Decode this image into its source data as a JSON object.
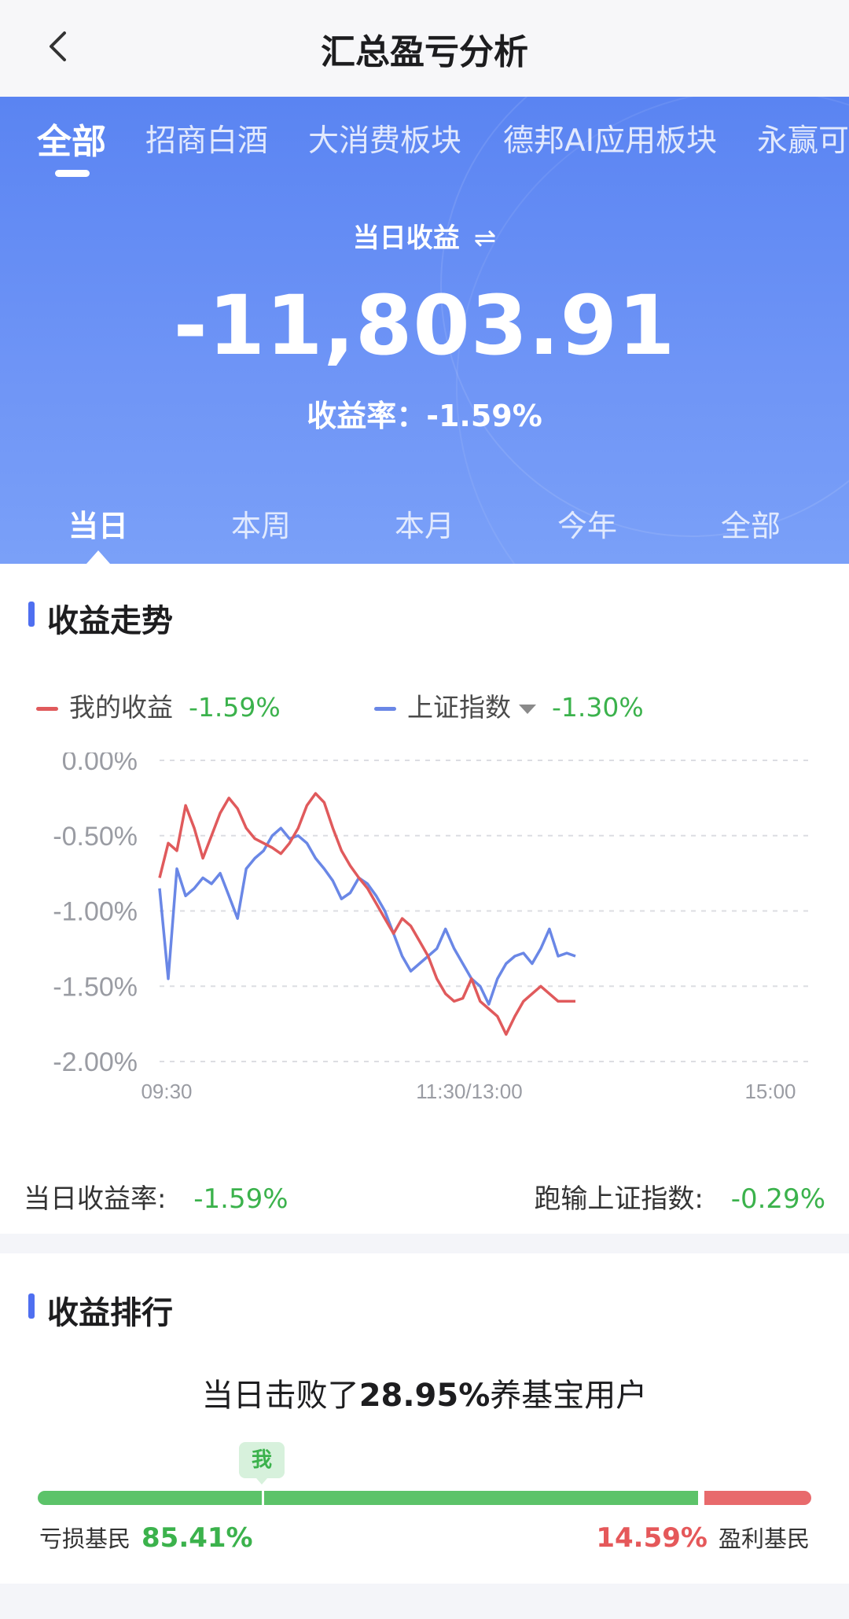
{
  "nav": {
    "title": "汇总盈亏分析"
  },
  "fund_tabs": [
    "全部",
    "招商白酒",
    "大消费板块",
    "德邦AI应用板块",
    "永赢可"
  ],
  "summary": {
    "label": "当日收益",
    "amount": "-11,803.91",
    "rate_label": "收益率：",
    "rate_value": "-1.59%"
  },
  "period_tabs": [
    "当日",
    "本周",
    "本月",
    "今年",
    "全部"
  ],
  "trend": {
    "title": "收益走势",
    "legend_mine_label": "我的收益",
    "legend_mine_value": "-1.59%",
    "legend_index_label": "上证指数",
    "legend_index_value": "-1.30%",
    "daily_rate_label": "当日收益率:",
    "daily_rate_value": "-1.59%",
    "vs_index_label": "跑输上证指数:",
    "vs_index_value": "-0.29%"
  },
  "ranking": {
    "title": "收益排行",
    "text_prefix": "当日击败了",
    "text_value": "28.95%",
    "text_suffix": "养基宝用户",
    "me_badge": "我",
    "loss_label": "亏损基民",
    "loss_value": "85.41%",
    "gain_value": "14.59%",
    "gain_label": "盈利基民",
    "me_position": 0.2895,
    "loss_fraction": 0.8541
  },
  "colors": {
    "hero_blue": "#5a84f2",
    "mine_line": "#e05a5c",
    "index_line": "#6a87e6",
    "positive_green": "#3bb24c",
    "loss_red": "#e5585a"
  },
  "chart_data": {
    "type": "line",
    "ylabel": "",
    "xlabel": "",
    "y_ticks": [
      "0.00%",
      "-0.50%",
      "-1.00%",
      "-1.50%",
      "-2.00%"
    ],
    "x_ticks": [
      "09:30",
      "11:30/13:00",
      "15:00"
    ],
    "ylim": [
      -2.0,
      0.0
    ],
    "grid": true,
    "series": [
      {
        "name": "我的收益",
        "values": [
          -0.78,
          -0.55,
          -0.6,
          -0.3,
          -0.45,
          -0.65,
          -0.5,
          -0.35,
          -0.25,
          -0.32,
          -0.45,
          -0.52,
          -0.55,
          -0.58,
          -0.62,
          -0.55,
          -0.45,
          -0.3,
          -0.22,
          -0.28,
          -0.45,
          -0.6,
          -0.7,
          -0.78,
          -0.85,
          -0.95,
          -1.05,
          -1.15,
          -1.05,
          -1.1,
          -1.2,
          -1.3,
          -1.45,
          -1.55,
          -1.6,
          -1.58,
          -1.45,
          -1.6,
          -1.65,
          -1.7,
          -1.82,
          -1.7,
          -1.6,
          -1.55,
          -1.5,
          -1.55,
          -1.6,
          -1.6,
          -1.6
        ]
      },
      {
        "name": "上证指数",
        "values": [
          -0.85,
          -1.45,
          -0.72,
          -0.9,
          -0.85,
          -0.78,
          -0.82,
          -0.75,
          -0.9,
          -1.05,
          -0.72,
          -0.65,
          -0.6,
          -0.5,
          -0.45,
          -0.52,
          -0.5,
          -0.55,
          -0.65,
          -0.72,
          -0.8,
          -0.92,
          -0.88,
          -0.78,
          -0.82,
          -0.9,
          -1.0,
          -1.15,
          -1.3,
          -1.4,
          -1.35,
          -1.3,
          -1.25,
          -1.12,
          -1.25,
          -1.35,
          -1.45,
          -1.5,
          -1.62,
          -1.45,
          -1.35,
          -1.3,
          -1.28,
          -1.35,
          -1.25,
          -1.12,
          -1.3,
          -1.28,
          -1.3
        ]
      }
    ]
  }
}
